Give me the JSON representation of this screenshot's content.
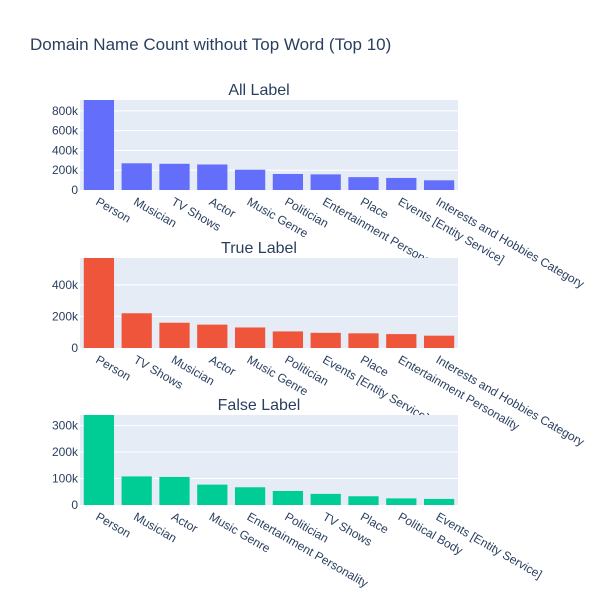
{
  "chart_data": {
    "title": "Domain Name Count without Top Word (Top 10)",
    "type": "bar",
    "subplots": [
      {
        "title": "All Label",
        "color": "#636efa",
        "categories": [
          "Person",
          "Musician",
          "TV Shows",
          "Actor",
          "Music Genre",
          "Politician",
          "Entertainment Personality",
          "Place",
          "Events [Entity Service]",
          "Interests and Hobbies Category"
        ],
        "values": [
          910000,
          270000,
          265000,
          258000,
          205000,
          162000,
          158000,
          130000,
          122000,
          98000
        ],
        "yticks": [
          0,
          200000,
          400000,
          600000,
          800000
        ],
        "ytick_labels": [
          "0",
          "200k",
          "400k",
          "600k",
          "800k"
        ],
        "ylim": [
          0,
          910000
        ]
      },
      {
        "title": "True Label",
        "color": "#ef553b",
        "categories": [
          "Person",
          "TV Shows",
          "Musician",
          "Actor",
          "Music Genre",
          "Politician",
          "Events [Entity Service]",
          "Place",
          "Entertainment Personality",
          "Interests and Hobbies Category"
        ],
        "values": [
          570000,
          220000,
          160000,
          148000,
          130000,
          105000,
          96000,
          93000,
          88000,
          78000
        ],
        "yticks": [
          0,
          200000,
          400000
        ],
        "ytick_labels": [
          "0",
          "200k",
          "400k"
        ],
        "ylim": [
          0,
          570000
        ]
      },
      {
        "title": "False Label",
        "color": "#00cc96",
        "categories": [
          "Person",
          "Musician",
          "Actor",
          "Music Genre",
          "Entertainment Personality",
          "Politician",
          "TV Shows",
          "Place",
          "Political Body",
          "Events [Entity Service]"
        ],
        "values": [
          340000,
          108000,
          106000,
          77000,
          67000,
          53000,
          42000,
          33000,
          25000,
          23000
        ],
        "yticks": [
          0,
          100000,
          200000,
          300000
        ],
        "ytick_labels": [
          "0",
          "100k",
          "200k",
          "300k"
        ],
        "ylim": [
          0,
          340000
        ]
      }
    ]
  }
}
